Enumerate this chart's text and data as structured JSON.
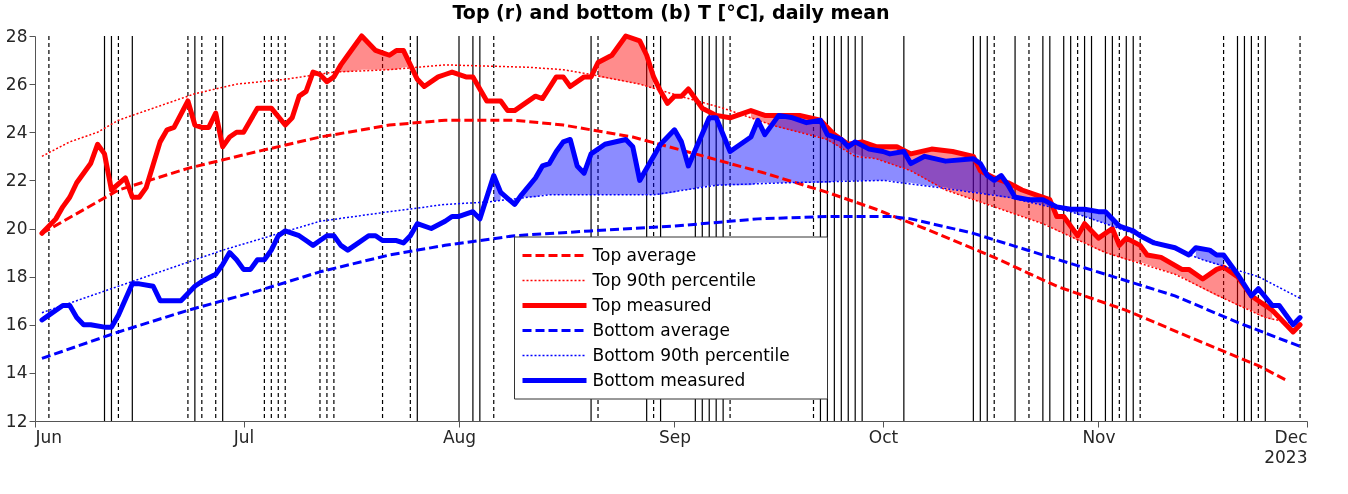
{
  "chart_data": {
    "type": "line",
    "title": "Top (r) and bottom (b) T [°C], daily mean",
    "xlabel": "2023",
    "xlim": [
      "2023-06-01",
      "2023-12-01"
    ],
    "xticks": [
      {
        "value": "2023-06-01",
        "label": "Jun"
      },
      {
        "value": "2023-07-01",
        "label": "Jul"
      },
      {
        "value": "2023-08-01",
        "label": "Aug"
      },
      {
        "value": "2023-09-01",
        "label": "Sep"
      },
      {
        "value": "2023-10-01",
        "label": "Oct"
      },
      {
        "value": "2023-11-01",
        "label": "Nov"
      },
      {
        "value": "2023-12-01",
        "label": "Dec"
      }
    ],
    "ylim": [
      12,
      28
    ],
    "yticks": [
      12,
      14,
      16,
      18,
      20,
      22,
      24,
      26,
      28
    ],
    "legend": "bottom",
    "series": [
      {
        "name": "Top average",
        "color": "#ff0000",
        "line_style": "dashed",
        "x": [
          "2023-06-02",
          "2023-06-13",
          "2023-06-23",
          "2023-07-03",
          "2023-07-12",
          "2023-07-22",
          "2023-07-30",
          "2023-08-09",
          "2023-08-16",
          "2023-08-26",
          "2023-09-04",
          "2023-09-14",
          "2023-09-23",
          "2023-09-30",
          "2023-10-07",
          "2023-10-17",
          "2023-10-26",
          "2023-11-05",
          "2023-11-14",
          "2023-11-24",
          "2023-11-28"
        ],
        "values": [
          19.8,
          21.6,
          22.5,
          23.2,
          23.8,
          24.3,
          24.5,
          24.5,
          24.3,
          23.8,
          23.1,
          22.3,
          21.5,
          20.8,
          20.0,
          18.8,
          17.6,
          16.6,
          15.5,
          14.3,
          13.7
        ]
      },
      {
        "name": "Top 90th percentile",
        "color": "#ff0000",
        "line_style": "dotted",
        "x": [
          "2023-06-02",
          "2023-06-06",
          "2023-06-10",
          "2023-06-13",
          "2023-06-18",
          "2023-06-24",
          "2023-06-30",
          "2023-07-07",
          "2023-07-14",
          "2023-07-22",
          "2023-07-30",
          "2023-08-11",
          "2023-08-16",
          "2023-08-20",
          "2023-08-27",
          "2023-09-03",
          "2023-09-08",
          "2023-09-15",
          "2023-09-23",
          "2023-09-27",
          "2023-09-30",
          "2023-10-05",
          "2023-10-10",
          "2023-10-16",
          "2023-10-24",
          "2023-11-02",
          "2023-11-12",
          "2023-11-19",
          "2023-11-25",
          "2023-11-30"
        ],
        "values": [
          23.0,
          23.6,
          24.0,
          24.5,
          25.0,
          25.6,
          26.0,
          26.2,
          26.5,
          26.6,
          26.8,
          26.7,
          26.6,
          26.4,
          26.0,
          25.4,
          25.0,
          24.3,
          23.7,
          23.0,
          22.9,
          22.4,
          21.6,
          21.0,
          20.2,
          19.0,
          18.1,
          17.1,
          16.3,
          16.0
        ]
      },
      {
        "name": "Top measured",
        "color": "#ff0000",
        "line_style": "solid",
        "x": [
          "2023-06-02",
          "2023-06-04",
          "2023-06-05",
          "2023-06-06",
          "2023-06-07",
          "2023-06-09",
          "2023-06-10",
          "2023-06-11",
          "2023-06-12",
          "2023-06-14",
          "2023-06-15",
          "2023-06-16",
          "2023-06-17",
          "2023-06-19",
          "2023-06-20",
          "2023-06-21",
          "2023-06-23",
          "2023-06-24",
          "2023-06-25",
          "2023-06-26",
          "2023-06-27",
          "2023-06-28",
          "2023-06-29",
          "2023-06-30",
          "2023-07-01",
          "2023-07-03",
          "2023-07-05",
          "2023-07-07",
          "2023-07-08",
          "2023-07-09",
          "2023-07-10",
          "2023-07-11",
          "2023-07-12",
          "2023-07-13",
          "2023-07-14",
          "2023-07-15",
          "2023-07-16",
          "2023-07-18",
          "2023-07-20",
          "2023-07-21",
          "2023-07-22",
          "2023-07-23",
          "2023-07-24",
          "2023-07-25",
          "2023-07-26",
          "2023-07-27",
          "2023-07-29",
          "2023-07-30",
          "2023-07-31",
          "2023-08-02",
          "2023-08-03",
          "2023-08-05",
          "2023-08-07",
          "2023-08-08",
          "2023-08-09",
          "2023-08-12",
          "2023-08-13",
          "2023-08-15",
          "2023-08-16",
          "2023-08-17",
          "2023-08-19",
          "2023-08-20",
          "2023-08-21",
          "2023-08-23",
          "2023-08-25",
          "2023-08-27",
          "2023-08-28",
          "2023-08-29",
          "2023-08-30",
          "2023-08-31",
          "2023-09-01",
          "2023-09-02",
          "2023-09-03",
          "2023-09-05",
          "2023-09-07",
          "2023-09-09",
          "2023-09-12",
          "2023-09-14",
          "2023-09-16",
          "2023-09-19",
          "2023-09-22",
          "2023-09-24",
          "2023-09-26",
          "2023-09-28",
          "2023-09-30",
          "2023-10-03",
          "2023-10-05",
          "2023-10-08",
          "2023-10-11",
          "2023-10-14",
          "2023-10-15",
          "2023-10-17",
          "2023-10-19",
          "2023-10-21",
          "2023-10-23",
          "2023-10-25",
          "2023-10-26",
          "2023-10-27",
          "2023-10-29",
          "2023-10-30",
          "2023-11-01",
          "2023-11-03",
          "2023-11-04",
          "2023-11-05",
          "2023-11-07",
          "2023-11-08",
          "2023-11-10",
          "2023-11-13",
          "2023-11-14",
          "2023-11-16",
          "2023-11-18",
          "2023-11-19",
          "2023-11-21",
          "2023-11-23",
          "2023-11-24",
          "2023-11-26",
          "2023-11-28",
          "2023-11-29",
          "2023-11-30"
        ],
        "values": [
          19.8,
          20.4,
          20.9,
          21.3,
          21.9,
          22.7,
          23.5,
          23.1,
          21.6,
          22.1,
          21.3,
          21.3,
          21.7,
          23.6,
          24.1,
          24.2,
          25.3,
          24.3,
          24.2,
          24.2,
          24.8,
          23.4,
          23.8,
          24.0,
          24.0,
          25.0,
          25.0,
          24.3,
          24.6,
          25.5,
          25.7,
          26.5,
          26.4,
          26.1,
          26.3,
          26.8,
          27.2,
          28.0,
          27.4,
          27.3,
          27.2,
          27.4,
          27.4,
          26.8,
          26.2,
          25.9,
          26.3,
          26.4,
          26.5,
          26.3,
          26.3,
          25.3,
          25.3,
          24.9,
          24.9,
          25.5,
          25.4,
          26.3,
          26.3,
          25.9,
          26.3,
          26.3,
          26.9,
          27.2,
          28.0,
          27.8,
          27.2,
          26.3,
          25.7,
          25.2,
          25.5,
          25.5,
          25.8,
          25.0,
          24.7,
          24.6,
          24.9,
          24.7,
          24.7,
          24.7,
          24.5,
          23.9,
          23.5,
          23.6,
          23.4,
          23.4,
          23.1,
          23.3,
          23.2,
          23.0,
          22.4,
          22.1,
          21.9,
          21.6,
          21.4,
          21.2,
          20.5,
          20.5,
          19.7,
          20.2,
          19.6,
          20.0,
          19.3,
          19.6,
          19.3,
          18.9,
          18.8,
          18.3,
          18.3,
          17.9,
          18.3,
          18.4,
          18.0,
          17.2,
          17.0,
          16.6,
          16.0,
          15.7,
          16.0
        ],
        "lower": [
          null,
          null,
          null,
          null,
          null,
          null,
          null,
          null,
          null,
          null,
          null,
          null,
          null,
          null,
          null,
          null,
          null,
          null,
          null,
          null,
          null,
          null,
          null,
          null,
          null,
          null,
          null,
          null,
          null,
          null,
          null,
          null,
          null,
          null,
          null,
          26.5,
          26.5,
          26.6,
          26.6,
          26.6,
          26.6,
          26.6,
          26.7,
          26.7,
          null,
          null,
          null,
          null,
          null,
          null,
          null,
          null,
          null,
          null,
          null,
          null,
          null,
          null,
          null,
          null,
          null,
          null,
          26.3,
          26.2,
          26.1,
          26.0,
          25.9,
          25.8,
          null,
          null,
          null,
          null,
          null,
          null,
          null,
          null,
          24.6,
          24.4,
          24.2,
          24.0,
          23.8,
          23.5,
          23.2,
          23.0,
          22.9,
          22.6,
          22.4,
          21.9,
          21.5,
          21.2,
          21.1,
          20.9,
          20.7,
          20.5,
          20.3,
          20.1,
          19.9,
          19.8,
          19.5,
          19.4,
          19.1,
          18.9,
          18.8,
          18.7,
          18.6,
          18.5,
          18.3,
          18.0,
          17.8,
          17.5,
          17.2,
          17.1,
          16.8,
          16.6,
          16.4,
          16.2,
          null,
          null,
          null
        ],
        "upper": [
          null,
          null,
          null,
          null,
          null,
          null,
          null,
          null,
          null,
          null,
          null,
          null,
          null,
          null,
          null,
          null,
          null,
          null,
          null,
          null,
          null,
          null,
          null,
          null,
          null,
          null,
          null,
          null,
          null,
          null,
          null,
          null,
          null,
          null,
          null,
          26.8,
          27.2,
          28.0,
          27.4,
          27.3,
          27.2,
          27.4,
          27.4,
          26.8,
          null,
          null,
          null,
          null,
          null,
          null,
          null,
          null,
          null,
          null,
          null,
          null,
          null,
          null,
          null,
          null,
          null,
          null,
          26.9,
          27.2,
          28.0,
          27.8,
          27.2,
          26.3,
          null,
          null,
          null,
          null,
          null,
          null,
          null,
          null,
          24.9,
          24.7,
          24.7,
          24.7,
          24.5,
          23.9,
          23.5,
          23.6,
          23.4,
          23.4,
          23.1,
          23.3,
          23.2,
          23.0,
          22.4,
          22.1,
          21.9,
          21.6,
          21.4,
          21.2,
          20.5,
          20.5,
          19.7,
          20.2,
          19.6,
          20.0,
          19.3,
          19.6,
          19.3,
          18.9,
          18.8,
          18.3,
          18.3,
          17.9,
          18.3,
          18.4,
          18.0,
          17.2,
          17.0,
          16.6,
          null,
          null,
          null
        ]
      },
      {
        "name": "Bottom average",
        "color": "#0000ff",
        "line_style": "dashed",
        "x": [
          "2023-06-02",
          "2023-06-13",
          "2023-06-23",
          "2023-07-03",
          "2023-07-12",
          "2023-07-22",
          "2023-07-30",
          "2023-08-09",
          "2023-08-20",
          "2023-09-01",
          "2023-09-13",
          "2023-09-23",
          "2023-10-02",
          "2023-10-05",
          "2023-10-14",
          "2023-10-24",
          "2023-11-02",
          "2023-11-12",
          "2023-11-21",
          "2023-11-30"
        ],
        "values": [
          14.6,
          15.7,
          16.6,
          17.4,
          18.2,
          18.9,
          19.3,
          19.7,
          19.9,
          20.1,
          20.4,
          20.5,
          20.5,
          20.4,
          19.8,
          18.9,
          18.1,
          17.2,
          16.1,
          15.1
        ]
      },
      {
        "name": "Bottom 90th percentile",
        "color": "#0000ff",
        "line_style": "dotted",
        "x": [
          "2023-06-02",
          "2023-06-11",
          "2023-06-18",
          "2023-06-28",
          "2023-07-05",
          "2023-07-12",
          "2023-07-22",
          "2023-07-30",
          "2023-08-05",
          "2023-08-14",
          "2023-08-29",
          "2023-09-07",
          "2023-09-17",
          "2023-10-01",
          "2023-10-09",
          "2023-10-19",
          "2023-10-28",
          "2023-11-07",
          "2023-11-16",
          "2023-11-24",
          "2023-11-30"
        ],
        "values": [
          16.5,
          17.4,
          18.1,
          19.1,
          19.7,
          20.3,
          20.7,
          21.0,
          21.1,
          21.4,
          21.4,
          21.8,
          21.9,
          22.0,
          21.7,
          21.3,
          20.7,
          19.7,
          18.7,
          18.0,
          17.1
        ]
      },
      {
        "name": "Bottom measured",
        "color": "#0000ff",
        "line_style": "solid",
        "x": [
          "2023-06-02",
          "2023-06-03",
          "2023-06-05",
          "2023-06-06",
          "2023-06-07",
          "2023-06-08",
          "2023-06-09",
          "2023-06-11",
          "2023-06-12",
          "2023-06-13",
          "2023-06-15",
          "2023-06-16",
          "2023-06-18",
          "2023-06-19",
          "2023-06-21",
          "2023-06-22",
          "2023-06-24",
          "2023-06-25",
          "2023-06-27",
          "2023-06-28",
          "2023-06-29",
          "2023-06-30",
          "2023-07-01",
          "2023-07-02",
          "2023-07-03",
          "2023-07-04",
          "2023-07-05",
          "2023-07-06",
          "2023-07-07",
          "2023-07-09",
          "2023-07-10",
          "2023-07-11",
          "2023-07-12",
          "2023-07-13",
          "2023-07-14",
          "2023-07-15",
          "2023-07-16",
          "2023-07-17",
          "2023-07-19",
          "2023-07-20",
          "2023-07-21",
          "2023-07-22",
          "2023-07-23",
          "2023-07-24",
          "2023-07-25",
          "2023-07-26",
          "2023-07-28",
          "2023-07-30",
          "2023-07-31",
          "2023-08-01",
          "2023-08-03",
          "2023-08-04",
          "2023-08-06",
          "2023-08-07",
          "2023-08-09",
          "2023-08-10",
          "2023-08-12",
          "2023-08-13",
          "2023-08-14",
          "2023-08-15",
          "2023-08-16",
          "2023-08-17",
          "2023-08-18",
          "2023-08-19",
          "2023-08-20",
          "2023-08-22",
          "2023-08-25",
          "2023-08-26",
          "2023-08-27",
          "2023-08-30",
          "2023-09-01",
          "2023-09-02",
          "2023-09-03",
          "2023-09-06",
          "2023-09-07",
          "2023-09-09",
          "2023-09-12",
          "2023-09-13",
          "2023-09-14",
          "2023-09-16",
          "2023-09-18",
          "2023-09-20",
          "2023-09-22",
          "2023-09-23",
          "2023-09-25",
          "2023-09-26",
          "2023-09-27",
          "2023-09-29",
          "2023-10-01",
          "2023-10-02",
          "2023-10-04",
          "2023-10-05",
          "2023-10-07",
          "2023-10-10",
          "2023-10-14",
          "2023-10-15",
          "2023-10-16",
          "2023-10-17",
          "2023-10-18",
          "2023-10-19",
          "2023-10-20",
          "2023-10-22",
          "2023-10-24",
          "2023-10-26",
          "2023-10-28",
          "2023-10-30",
          "2023-11-01",
          "2023-11-02",
          "2023-11-04",
          "2023-11-06",
          "2023-11-07",
          "2023-11-09",
          "2023-11-12",
          "2023-11-14",
          "2023-11-15",
          "2023-11-17",
          "2023-11-18",
          "2023-11-19",
          "2023-11-21",
          "2023-11-23",
          "2023-11-24",
          "2023-11-26",
          "2023-11-27",
          "2023-11-29",
          "2023-11-30"
        ],
        "values": [
          16.2,
          16.4,
          16.8,
          16.8,
          16.3,
          16.0,
          16.0,
          15.9,
          15.9,
          16.4,
          17.7,
          17.7,
          17.6,
          17.0,
          17.0,
          17.0,
          17.6,
          17.8,
          18.1,
          18.5,
          19.0,
          18.7,
          18.3,
          18.3,
          18.7,
          18.7,
          19.1,
          19.7,
          19.9,
          19.7,
          19.5,
          19.3,
          19.5,
          19.7,
          19.7,
          19.3,
          19.1,
          19.3,
          19.7,
          19.7,
          19.5,
          19.5,
          19.5,
          19.4,
          19.7,
          20.2,
          20.0,
          20.3,
          20.5,
          20.5,
          20.7,
          20.4,
          22.2,
          21.5,
          21.0,
          21.4,
          22.1,
          22.6,
          22.7,
          23.2,
          23.6,
          23.7,
          22.6,
          22.3,
          23.1,
          23.5,
          23.7,
          23.4,
          22.0,
          23.5,
          24.1,
          23.6,
          22.6,
          24.6,
          24.6,
          23.2,
          23.8,
          24.5,
          23.9,
          24.7,
          24.6,
          24.4,
          24.5,
          23.9,
          23.7,
          23.4,
          23.6,
          23.3,
          23.2,
          23.1,
          23.2,
          22.7,
          23.0,
          22.8,
          22.9,
          22.7,
          22.2,
          22.0,
          22.2,
          21.8,
          21.3,
          21.2,
          21.2,
          20.9,
          20.8,
          20.8,
          20.7,
          20.7,
          20.1,
          19.9,
          19.7,
          19.4,
          19.2,
          18.9,
          19.2,
          19.1,
          18.9,
          18.9,
          18.1,
          17.2,
          17.5,
          16.8,
          16.8,
          16.0,
          16.3
        ],
        "lower": [
          null,
          null,
          null,
          null,
          null,
          null,
          null,
          null,
          null,
          null,
          null,
          null,
          null,
          null,
          null,
          null,
          null,
          null,
          null,
          null,
          null,
          null,
          null,
          null,
          null,
          null,
          null,
          null,
          null,
          null,
          null,
          null,
          null,
          null,
          null,
          null,
          null,
          null,
          null,
          null,
          null,
          null,
          null,
          null,
          null,
          null,
          null,
          null,
          null,
          null,
          null,
          null,
          21.1,
          21.2,
          null,
          21.3,
          21.3,
          21.4,
          21.4,
          21.4,
          21.4,
          21.4,
          21.4,
          21.4,
          21.4,
          21.4,
          21.4,
          21.4,
          21.4,
          21.4,
          21.5,
          21.6,
          21.6,
          21.8,
          21.8,
          21.8,
          21.8,
          21.9,
          21.9,
          21.9,
          21.9,
          21.9,
          21.9,
          21.9,
          22.0,
          22.0,
          22.0,
          22.0,
          22.0,
          22.0,
          21.9,
          21.9,
          21.8,
          21.7,
          21.5,
          21.5,
          21.4,
          21.4,
          21.3,
          21.3,
          21.2,
          21.1,
          21.0,
          20.8,
          20.7,
          20.5,
          20.3,
          20.2,
          20.0,
          19.8,
          null,
          null,
          null,
          null,
          18.8,
          18.6,
          18.5,
          18.4,
          null,
          null,
          null,
          null,
          null,
          null,
          null
        ],
        "upper": [
          null,
          null,
          null,
          null,
          null,
          null,
          null,
          null,
          null,
          null,
          null,
          null,
          null,
          null,
          null,
          null,
          null,
          null,
          null,
          null,
          null,
          null,
          null,
          null,
          null,
          null,
          null,
          null,
          null,
          null,
          null,
          null,
          null,
          null,
          null,
          null,
          null,
          null,
          null,
          null,
          null,
          null,
          null,
          null,
          null,
          null,
          null,
          null,
          null,
          null,
          null,
          null,
          22.2,
          21.5,
          null,
          21.4,
          22.1,
          22.6,
          22.7,
          23.2,
          23.6,
          23.7,
          22.6,
          22.3,
          23.1,
          23.5,
          23.7,
          23.4,
          22.0,
          23.5,
          24.1,
          23.6,
          22.6,
          24.6,
          24.6,
          23.2,
          23.8,
          24.5,
          23.9,
          24.7,
          24.6,
          24.4,
          24.5,
          23.9,
          23.7,
          23.4,
          23.6,
          23.3,
          23.2,
          23.1,
          23.2,
          22.7,
          23.0,
          22.8,
          22.9,
          22.7,
          22.2,
          22.0,
          22.2,
          21.8,
          21.3,
          21.2,
          21.2,
          20.9,
          20.8,
          20.8,
          20.7,
          20.7,
          20.1,
          19.9,
          null,
          null,
          null,
          null,
          19.2,
          19.1,
          18.9,
          18.9,
          null,
          null,
          null,
          null,
          null,
          null,
          null
        ]
      }
    ],
    "ref_lines": [
      {
        "axis": "x",
        "value": "2023-06-03",
        "line_style": "dashed"
      },
      {
        "axis": "x",
        "value": "2023-06-11",
        "line_style": "solid"
      },
      {
        "axis": "x",
        "value": "2023-06-12",
        "line_style": "solid"
      },
      {
        "axis": "x",
        "value": "2023-06-13",
        "line_style": "dashed"
      },
      {
        "axis": "x",
        "value": "2023-06-15",
        "line_style": "solid"
      },
      {
        "axis": "x",
        "value": "2023-06-23",
        "line_style": "dashed"
      },
      {
        "axis": "x",
        "value": "2023-06-24",
        "line_style": "solid"
      },
      {
        "axis": "x",
        "value": "2023-06-25",
        "line_style": "dashed"
      },
      {
        "axis": "x",
        "value": "2023-06-27",
        "line_style": "dashed"
      },
      {
        "axis": "x",
        "value": "2023-06-28",
        "line_style": "solid"
      },
      {
        "axis": "x",
        "value": "2023-07-04",
        "line_style": "dashed"
      },
      {
        "axis": "x",
        "value": "2023-07-05",
        "line_style": "dashed"
      },
      {
        "axis": "x",
        "value": "2023-07-06",
        "line_style": "dashed"
      },
      {
        "axis": "x",
        "value": "2023-07-07",
        "line_style": "dashed"
      },
      {
        "axis": "x",
        "value": "2023-07-12",
        "line_style": "dashed"
      },
      {
        "axis": "x",
        "value": "2023-07-13",
        "line_style": "dashed"
      },
      {
        "axis": "x",
        "value": "2023-07-14",
        "line_style": "dashed"
      },
      {
        "axis": "x",
        "value": "2023-07-21",
        "line_style": "dashed"
      },
      {
        "axis": "x",
        "value": "2023-07-25",
        "line_style": "dashed"
      },
      {
        "axis": "x",
        "value": "2023-07-26",
        "line_style": "solid"
      },
      {
        "axis": "x",
        "value": "2023-08-01",
        "line_style": "solid"
      },
      {
        "axis": "x",
        "value": "2023-08-03",
        "line_style": "solid"
      },
      {
        "axis": "x",
        "value": "2023-08-04",
        "line_style": "solid"
      },
      {
        "axis": "x",
        "value": "2023-08-06",
        "line_style": "dashed"
      },
      {
        "axis": "x",
        "value": "2023-08-20",
        "line_style": "solid"
      },
      {
        "axis": "x",
        "value": "2023-08-21",
        "line_style": "dashed"
      },
      {
        "axis": "x",
        "value": "2023-08-28",
        "line_style": "solid"
      },
      {
        "axis": "x",
        "value": "2023-08-29",
        "line_style": "dashed"
      },
      {
        "axis": "x",
        "value": "2023-08-30",
        "line_style": "solid"
      },
      {
        "axis": "x",
        "value": "2023-09-04",
        "line_style": "solid"
      },
      {
        "axis": "x",
        "value": "2023-09-05",
        "line_style": "solid"
      },
      {
        "axis": "x",
        "value": "2023-09-06",
        "line_style": "solid"
      },
      {
        "axis": "x",
        "value": "2023-09-07",
        "line_style": "solid"
      },
      {
        "axis": "x",
        "value": "2023-09-08",
        "line_style": "solid"
      },
      {
        "axis": "x",
        "value": "2023-09-09",
        "line_style": "dashed"
      },
      {
        "axis": "x",
        "value": "2023-09-21",
        "line_style": "dashed"
      },
      {
        "axis": "x",
        "value": "2023-09-22",
        "line_style": "solid"
      },
      {
        "axis": "x",
        "value": "2023-09-23",
        "line_style": "solid"
      },
      {
        "axis": "x",
        "value": "2023-09-24",
        "line_style": "solid"
      },
      {
        "axis": "x",
        "value": "2023-09-25",
        "line_style": "solid"
      },
      {
        "axis": "x",
        "value": "2023-09-26",
        "line_style": "solid"
      },
      {
        "axis": "x",
        "value": "2023-09-27",
        "line_style": "solid"
      },
      {
        "axis": "x",
        "value": "2023-09-28",
        "line_style": "solid"
      },
      {
        "axis": "x",
        "value": "2023-10-04",
        "line_style": "solid"
      },
      {
        "axis": "x",
        "value": "2023-10-14",
        "line_style": "solid"
      },
      {
        "axis": "x",
        "value": "2023-10-15",
        "line_style": "solid"
      },
      {
        "axis": "x",
        "value": "2023-10-16",
        "line_style": "solid"
      },
      {
        "axis": "x",
        "value": "2023-10-17",
        "line_style": "dashed"
      },
      {
        "axis": "x",
        "value": "2023-10-20",
        "line_style": "solid"
      },
      {
        "axis": "x",
        "value": "2023-10-22",
        "line_style": "dashed"
      },
      {
        "axis": "x",
        "value": "2023-10-24",
        "line_style": "solid"
      },
      {
        "axis": "x",
        "value": "2023-10-25",
        "line_style": "solid"
      },
      {
        "axis": "x",
        "value": "2023-10-27",
        "line_style": "solid"
      },
      {
        "axis": "x",
        "value": "2023-10-28",
        "line_style": "solid"
      },
      {
        "axis": "x",
        "value": "2023-10-29",
        "line_style": "dashed"
      },
      {
        "axis": "x",
        "value": "2023-10-30",
        "line_style": "solid"
      },
      {
        "axis": "x",
        "value": "2023-10-31",
        "line_style": "solid"
      },
      {
        "axis": "x",
        "value": "2023-11-02",
        "line_style": "solid"
      },
      {
        "axis": "x",
        "value": "2023-11-03",
        "line_style": "solid"
      },
      {
        "axis": "x",
        "value": "2023-11-04",
        "line_style": "dashed"
      },
      {
        "axis": "x",
        "value": "2023-11-05",
        "line_style": "solid"
      },
      {
        "axis": "x",
        "value": "2023-11-06",
        "line_style": "solid"
      },
      {
        "axis": "x",
        "value": "2023-11-07",
        "line_style": "dashed"
      },
      {
        "axis": "x",
        "value": "2023-11-19",
        "line_style": "dashed"
      },
      {
        "axis": "x",
        "value": "2023-11-21",
        "line_style": "solid"
      },
      {
        "axis": "x",
        "value": "2023-11-22",
        "line_style": "solid"
      },
      {
        "axis": "x",
        "value": "2023-11-23",
        "line_style": "solid"
      },
      {
        "axis": "x",
        "value": "2023-11-24",
        "line_style": "dashed"
      },
      {
        "axis": "x",
        "value": "2023-11-25",
        "line_style": "solid"
      },
      {
        "axis": "x",
        "value": "2023-11-30",
        "line_style": "dashed"
      }
    ]
  }
}
